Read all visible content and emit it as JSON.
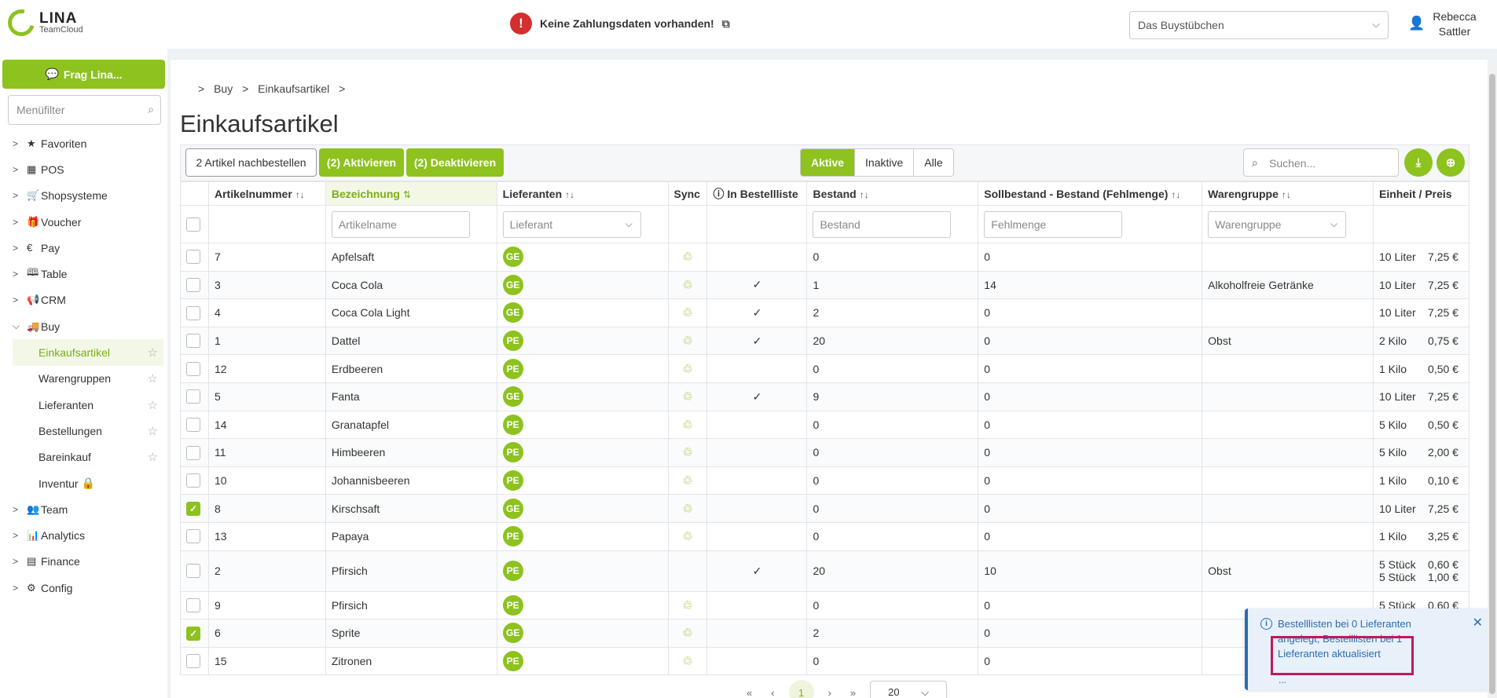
{
  "header": {
    "logo_main": "LINA",
    "logo_sub": "TeamCloud",
    "payment_warning": "Keine Zahlungsdaten vorhanden!",
    "store": "Das Buystübchen",
    "user_first": "Rebecca",
    "user_last": "Sattler"
  },
  "sidebar": {
    "ask_button": "Frag Lina...",
    "filter_placeholder": "Menüfilter",
    "items": [
      {
        "label": "Favoriten",
        "icon": "star-icon"
      },
      {
        "label": "POS",
        "icon": "register-icon"
      },
      {
        "label": "Shopsysteme",
        "icon": "cart-icon"
      },
      {
        "label": "Voucher",
        "icon": "gift-icon"
      },
      {
        "label": "Pay",
        "icon": "euro-icon"
      },
      {
        "label": "Table",
        "icon": "book-icon"
      },
      {
        "label": "CRM",
        "icon": "megaphone-icon"
      },
      {
        "label": "Buy",
        "icon": "truck-icon"
      }
    ],
    "buy_sub": [
      "Einkaufsartikel",
      "Warengruppen",
      "Lieferanten",
      "Bestellungen",
      "Bareinkauf",
      "Inventur"
    ],
    "items_after": [
      {
        "label": "Team",
        "icon": "team-icon"
      },
      {
        "label": "Analytics",
        "icon": "analytics-icon"
      },
      {
        "label": "Finance",
        "icon": "calculator-icon"
      },
      {
        "label": "Config",
        "icon": "gears-icon"
      }
    ]
  },
  "breadcrumb": {
    "level1": "Buy",
    "level2": "Einkaufsartikel"
  },
  "page_title": "Einkaufsartikel",
  "toolbar": {
    "reorder": "2 Artikel nachbestellen",
    "activate": "(2) Aktivieren",
    "deactivate": "(2) Deaktivieren",
    "filter_active": "Aktive",
    "filter_inactive": "Inaktive",
    "filter_all": "Alle",
    "search_placeholder": "Suchen..."
  },
  "table": {
    "headers": {
      "number": "Artikelnummer",
      "name": "Bezeichnung",
      "supplier": "Lieferanten",
      "sync": "Sync",
      "in_list": "In Bestellliste",
      "stock": "Bestand",
      "target": "Sollbestand - Bestand (Fehlmenge)",
      "group": "Warengruppe",
      "unit_price": "Einheit / Preis"
    },
    "filters": {
      "name": "Artikelname",
      "supplier": "Lieferant",
      "stock": "Bestand",
      "missing": "Fehlmenge",
      "group": "Warengruppe"
    },
    "rows": [
      {
        "checked": false,
        "number": "7",
        "name": "Apfelsaft",
        "supplier": "GE",
        "sync": true,
        "in_list": false,
        "stock": "0",
        "missing": "0",
        "group": "",
        "units": [
          {
            "unit": "10 Liter",
            "price": "7,25 €"
          }
        ]
      },
      {
        "checked": false,
        "number": "3",
        "name": "Coca Cola",
        "supplier": "GE",
        "sync": true,
        "in_list": true,
        "stock": "1",
        "missing": "14",
        "group": "Alkoholfreie Getränke",
        "units": [
          {
            "unit": "10 Liter",
            "price": "7,25 €"
          }
        ]
      },
      {
        "checked": false,
        "number": "4",
        "name": "Coca Cola Light",
        "supplier": "GE",
        "sync": true,
        "in_list": true,
        "stock": "2",
        "missing": "0",
        "group": "",
        "units": [
          {
            "unit": "10 Liter",
            "price": "7,25 €"
          }
        ]
      },
      {
        "checked": false,
        "number": "1",
        "name": "Dattel",
        "supplier": "PE",
        "sync": true,
        "in_list": true,
        "stock": "20",
        "missing": "0",
        "group": "Obst",
        "units": [
          {
            "unit": "2 Kilo",
            "price": "0,75 €"
          }
        ]
      },
      {
        "checked": false,
        "number": "12",
        "name": "Erdbeeren",
        "supplier": "PE",
        "sync": true,
        "in_list": false,
        "stock": "0",
        "missing": "0",
        "group": "",
        "units": [
          {
            "unit": "1 Kilo",
            "price": "0,50 €"
          }
        ]
      },
      {
        "checked": false,
        "number": "5",
        "name": "Fanta",
        "supplier": "GE",
        "sync": true,
        "in_list": true,
        "stock": "9",
        "missing": "0",
        "group": "",
        "units": [
          {
            "unit": "10 Liter",
            "price": "7,25 €"
          }
        ]
      },
      {
        "checked": false,
        "number": "14",
        "name": "Granatapfel",
        "supplier": "PE",
        "sync": true,
        "in_list": false,
        "stock": "0",
        "missing": "0",
        "group": "",
        "units": [
          {
            "unit": "5 Kilo",
            "price": "0,50 €"
          }
        ]
      },
      {
        "checked": false,
        "number": "11",
        "name": "Himbeeren",
        "supplier": "PE",
        "sync": true,
        "in_list": false,
        "stock": "0",
        "missing": "0",
        "group": "",
        "units": [
          {
            "unit": "5 Kilo",
            "price": "2,00 €"
          }
        ]
      },
      {
        "checked": false,
        "number": "10",
        "name": "Johannisbeeren",
        "supplier": "PE",
        "sync": true,
        "in_list": false,
        "stock": "0",
        "missing": "0",
        "group": "",
        "units": [
          {
            "unit": "1 Kilo",
            "price": "0,10 €"
          }
        ]
      },
      {
        "checked": true,
        "number": "8",
        "name": "Kirschsaft",
        "supplier": "GE",
        "sync": true,
        "in_list": false,
        "stock": "0",
        "missing": "0",
        "group": "",
        "units": [
          {
            "unit": "10 Liter",
            "price": "7,25 €"
          }
        ]
      },
      {
        "checked": false,
        "number": "13",
        "name": "Papaya",
        "supplier": "PE",
        "sync": true,
        "in_list": false,
        "stock": "0",
        "missing": "0",
        "group": "",
        "units": [
          {
            "unit": "1 Kilo",
            "price": "3,25 €"
          }
        ]
      },
      {
        "checked": false,
        "number": "2",
        "name": "Pfirsich",
        "supplier": "PE",
        "sync": false,
        "in_list": true,
        "stock": "20",
        "missing": "10",
        "group": "Obst",
        "units": [
          {
            "unit": "5 Stück",
            "price": "0,60 €"
          },
          {
            "unit": "5 Stück",
            "price": "1,00 €"
          }
        ]
      },
      {
        "checked": false,
        "number": "9",
        "name": "Pfirsich",
        "supplier": "PE",
        "sync": true,
        "in_list": false,
        "stock": "0",
        "missing": "0",
        "group": "",
        "units": [
          {
            "unit": "5 Stück",
            "price": "0,60 €"
          }
        ]
      },
      {
        "checked": true,
        "number": "6",
        "name": "Sprite",
        "supplier": "GE",
        "sync": true,
        "in_list": false,
        "stock": "2",
        "missing": "0",
        "group": "",
        "units": [
          {
            "unit": "",
            "price": ""
          }
        ]
      },
      {
        "checked": false,
        "number": "15",
        "name": "Zitronen",
        "supplier": "PE",
        "sync": true,
        "in_list": false,
        "stock": "0",
        "missing": "0",
        "group": "",
        "units": [
          {
            "unit": "",
            "price": ""
          }
        ]
      }
    ]
  },
  "pagination": {
    "first": "«",
    "prev": "‹",
    "current": "1",
    "next": "›",
    "last": "»",
    "per_page": "20"
  },
  "toast": {
    "message": "Bestelllisten bei 0 Lieferanten angelegt, Bestelllisten bei 1 Lieferanten aktualisiert",
    "more": "..."
  },
  "colors": {
    "accent": "#8dc21f",
    "alert": "#d32f2f",
    "info": "#2b6cb0",
    "highlight": "#c2185b"
  }
}
